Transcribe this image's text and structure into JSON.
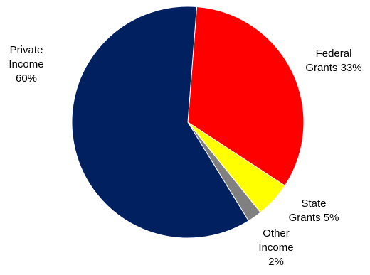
{
  "chart_data": {
    "type": "pie",
    "title": "",
    "slices": [
      {
        "label_lines": [
          "Federal",
          "Grants 33%"
        ],
        "value": 33,
        "color": "#ff0000"
      },
      {
        "label_lines": [
          "State",
          "Grants 5%"
        ],
        "value": 5,
        "color": "#ffff00"
      },
      {
        "label_lines": [
          "Other",
          "Income",
          "2%"
        ],
        "value": 2,
        "color": "#808080"
      },
      {
        "label_lines": [
          "Private",
          "Income",
          "60%"
        ],
        "value": 60,
        "color": "#002060"
      }
    ],
    "start": "top, clockwise",
    "legend": "none (labels placed beside slices)"
  }
}
